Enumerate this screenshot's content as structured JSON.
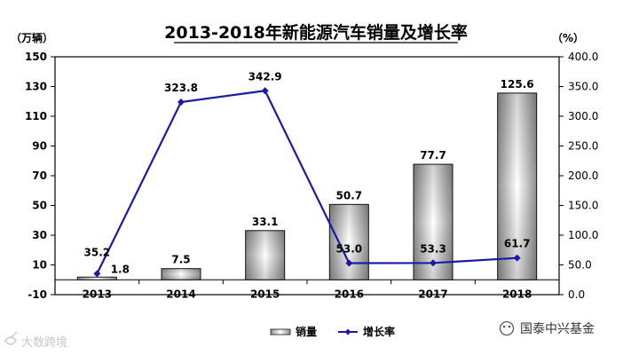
{
  "chart_data": {
    "type": "bar",
    "title": "2013-2018年新能源汽车销量及增长率",
    "y_left_unit": "（万辆）",
    "y_right_unit": "（%）",
    "categories": [
      "2013",
      "2014",
      "2015",
      "2016",
      "2017",
      "2018"
    ],
    "series": [
      {
        "name": "销量",
        "type": "bar",
        "axis": "left",
        "values": [
          1.8,
          7.5,
          33.1,
          50.7,
          77.7,
          125.6
        ]
      },
      {
        "name": "增长率",
        "type": "line",
        "axis": "right",
        "values": [
          35.2,
          323.8,
          342.9,
          53.0,
          53.3,
          61.7
        ]
      }
    ],
    "bar_labels": [
      "1.8",
      "7.5",
      "33.1",
      "50.7",
      "77.7",
      "125.6"
    ],
    "line_labels": [
      "35.2",
      "323.8",
      "342.9",
      "53.0",
      "53.3",
      "61.7"
    ],
    "y_left": {
      "range": [
        -10,
        150
      ],
      "ticks": [
        "-10",
        "10",
        "30",
        "50",
        "70",
        "90",
        "110",
        "130",
        "150"
      ]
    },
    "y_right": {
      "range": [
        0,
        400
      ],
      "ticks": [
        "0.0",
        "50.0",
        "100.0",
        "150.0",
        "200.0",
        "250.0",
        "300.0",
        "350.0",
        "400.0"
      ]
    },
    "grid": false,
    "legend_position": "bottom",
    "colors": {
      "line": "#1a1aa6",
      "bar_edge": "#111111",
      "bar_dark": "#9a9a9a",
      "bar_light": "#ffffff",
      "axis": "#000000"
    }
  },
  "watermarks": {
    "left": "大数跨境",
    "right": "国泰中兴基金"
  }
}
